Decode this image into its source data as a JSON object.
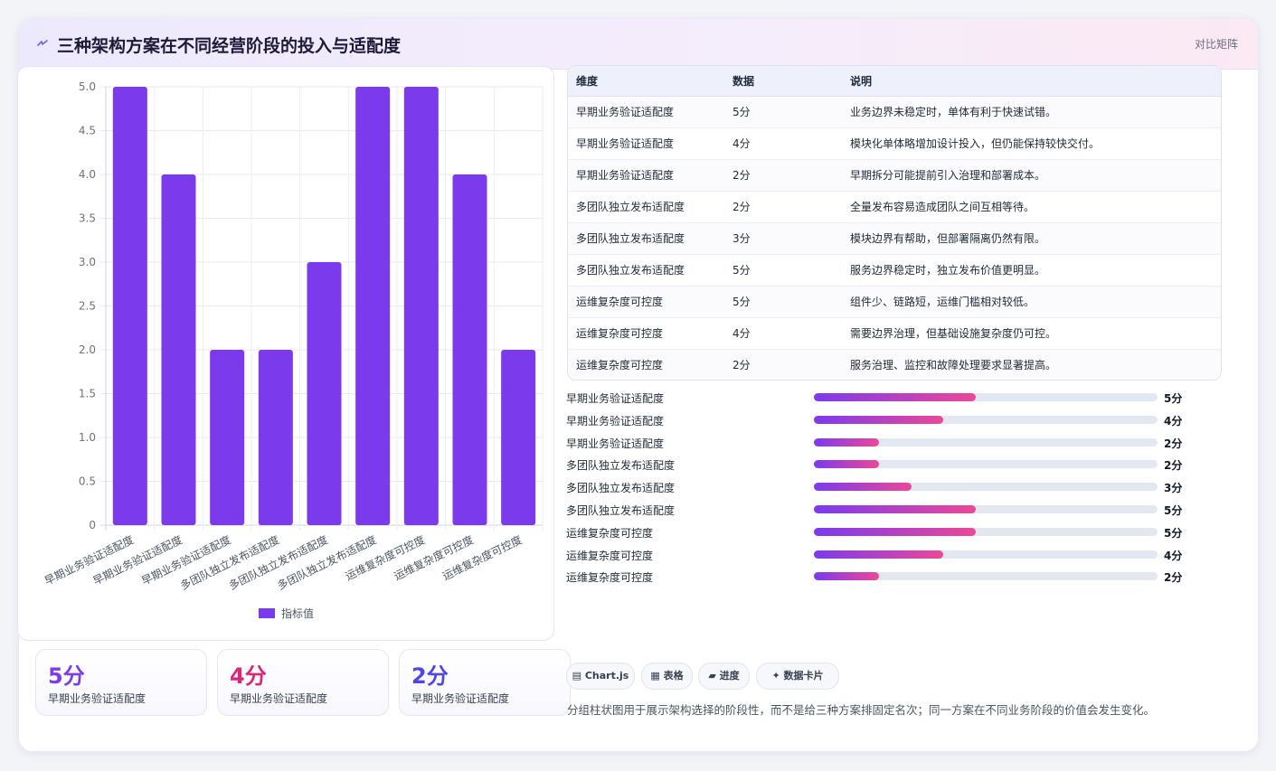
{
  "header": {
    "title": "三种架构方案在不同经营阶段的投入与适配度",
    "tag": "对比矩阵",
    "icon": "spark-icon"
  },
  "chart_data": {
    "type": "bar",
    "categories": [
      "早期业务验证适配度",
      "早期业务验证适配度",
      "早期业务验证适配度",
      "多团队独立发布适配度",
      "多团队独立发布适配度",
      "多团队独立发布适配度",
      "运维复杂度可控度",
      "运维复杂度可控度",
      "运维复杂度可控度"
    ],
    "series": [
      {
        "name": "指标值",
        "values": [
          5,
          4,
          2,
          2,
          3,
          5,
          5,
          4,
          2
        ],
        "color": "#7c3aed"
      }
    ],
    "yticks": [
      "5.0",
      "4.5",
      "4.0",
      "3.5",
      "3.0",
      "2.5",
      "2.0",
      "1.5",
      "1.0",
      "0.5",
      "0"
    ],
    "ylim": [
      0,
      5
    ],
    "grid": true,
    "legend": "bottom"
  },
  "kpis": [
    {
      "value": "5分",
      "label": "早期业务验证适配度",
      "color": "#7c3aed"
    },
    {
      "value": "4分",
      "label": "早期业务验证适配度",
      "color": "#db2777"
    },
    {
      "value": "2分",
      "label": "早期业务验证适配度",
      "color": "#4f46e5"
    }
  ],
  "table": {
    "headers": [
      "维度",
      "数据",
      "说明"
    ],
    "rows": [
      [
        "早期业务验证适配度",
        "5分",
        "业务边界未稳定时，单体有利于快速试错。"
      ],
      [
        "早期业务验证适配度",
        "4分",
        "模块化单体略增加设计投入，但仍能保持较快交付。"
      ],
      [
        "早期业务验证适配度",
        "2分",
        "早期拆分可能提前引入治理和部署成本。"
      ],
      [
        "多团队独立发布适配度",
        "2分",
        "全量发布容易造成团队之间互相等待。"
      ],
      [
        "多团队独立发布适配度",
        "3分",
        "模块边界有帮助，但部署隔离仍然有限。"
      ],
      [
        "多团队独立发布适配度",
        "5分",
        "服务边界稳定时，独立发布价值更明显。"
      ],
      [
        "运维复杂度可控度",
        "5分",
        "组件少、链路短，运维门槛相对较低。"
      ],
      [
        "运维复杂度可控度",
        "4分",
        "需要边界治理，但基础设施复杂度仍可控。"
      ],
      [
        "运维复杂度可控度",
        "2分",
        "服务治理、监控和故障处理要求显著提高。"
      ]
    ]
  },
  "progress": [
    {
      "label": "早期业务验证适配度",
      "value": 5,
      "text": "5分"
    },
    {
      "label": "早期业务验证适配度",
      "value": 4,
      "text": "4分"
    },
    {
      "label": "早期业务验证适配度",
      "value": 2,
      "text": "2分"
    },
    {
      "label": "多团队独立发布适配度",
      "value": 2,
      "text": "2分"
    },
    {
      "label": "多团队独立发布适配度",
      "value": 3,
      "text": "3分"
    },
    {
      "label": "多团队独立发布适配度",
      "value": 5,
      "text": "5分"
    },
    {
      "label": "运维复杂度可控度",
      "value": 5,
      "text": "5分"
    },
    {
      "label": "运维复杂度可控度",
      "value": 4,
      "text": "4分"
    },
    {
      "label": "运维复杂度可控度",
      "value": 2,
      "text": "2分"
    }
  ],
  "progress_max": 10.6,
  "chips": [
    {
      "icon": "chart-icon",
      "label": "▤ Chart.js"
    },
    {
      "icon": "table-icon",
      "label": "▦ 表格"
    },
    {
      "icon": "progress-icon",
      "label": "▰ 进度"
    },
    {
      "icon": "card-icon",
      "label": "✦ 数据卡片"
    }
  ],
  "footnote": "分组柱状图用于展示架构选择的阶段性，而不是给三种方案排固定名次；同一方案在不同业务阶段的价值会发生变化。"
}
